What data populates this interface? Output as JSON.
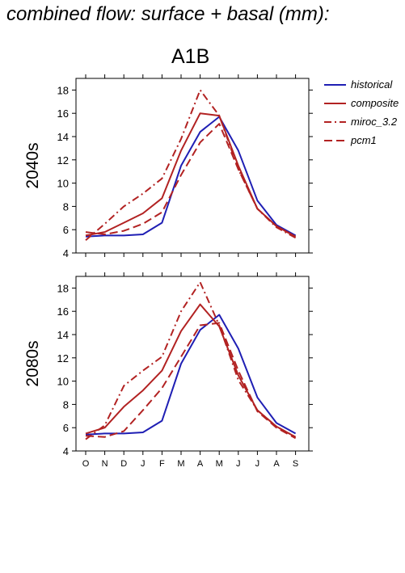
{
  "chart_data": {
    "type": "line",
    "title": "combined flow: surface + basal (mm):",
    "subtitle": "A1B",
    "categories": [
      "O",
      "N",
      "D",
      "J",
      "F",
      "M",
      "A",
      "M",
      "J",
      "J",
      "A",
      "S"
    ],
    "legend": {
      "placement": "right"
    },
    "series_styles": [
      {
        "name": "historical",
        "color": "#1f1fb4",
        "dash": ""
      },
      {
        "name": "composite",
        "color": "#b22222",
        "dash": ""
      },
      {
        "name": "miroc_3.2",
        "color": "#b22222",
        "dash": "9,4,2,4"
      },
      {
        "name": "pcm1",
        "color": "#b22222",
        "dash": "10,5"
      }
    ],
    "panels": [
      {
        "label": "2040s",
        "ylim": [
          4,
          19
        ],
        "yticks": [
          4,
          6,
          8,
          10,
          12,
          14,
          16,
          18
        ],
        "series": [
          {
            "name": "historical",
            "values": [
              5.4,
              5.5,
              5.5,
              5.6,
              6.6,
              11.5,
              14.4,
              15.7,
              12.8,
              8.5,
              6.4,
              5.5
            ]
          },
          {
            "name": "composite",
            "values": [
              5.5,
              5.8,
              6.6,
              7.4,
              8.7,
              12.8,
              16.0,
              15.8,
              11.5,
              7.8,
              6.3,
              5.4
            ]
          },
          {
            "name": "miroc_3.2",
            "values": [
              5.1,
              6.5,
              8.0,
              9.1,
              10.4,
              13.8,
              18.0,
              15.8,
              11.2,
              7.8,
              6.2,
              5.3
            ]
          },
          {
            "name": "pcm1",
            "values": [
              5.8,
              5.6,
              5.9,
              6.5,
              7.5,
              10.7,
              13.5,
              15.1,
              11.2,
              7.8,
              6.3,
              5.4
            ]
          }
        ]
      },
      {
        "label": "2080s",
        "ylim": [
          4,
          19
        ],
        "yticks": [
          4,
          6,
          8,
          10,
          12,
          14,
          16,
          18
        ],
        "series": [
          {
            "name": "historical",
            "values": [
              5.4,
              5.5,
              5.5,
              5.6,
              6.6,
              11.5,
              14.4,
              15.7,
              12.8,
              8.6,
              6.4,
              5.5
            ]
          },
          {
            "name": "composite",
            "values": [
              5.5,
              6.0,
              7.8,
              9.2,
              10.9,
              14.3,
              16.6,
              14.7,
              10.5,
              7.5,
              6.1,
              5.2
            ]
          },
          {
            "name": "miroc_3.2",
            "values": [
              5.0,
              6.2,
              9.6,
              10.9,
              12.1,
              16.0,
              18.5,
              14.8,
              10.1,
              7.5,
              6.1,
              5.2
            ]
          },
          {
            "name": "pcm1",
            "values": [
              5.3,
              5.2,
              5.7,
              7.5,
              9.4,
              12.1,
              14.8,
              15.0,
              10.9,
              7.4,
              6.0,
              5.1
            ]
          }
        ]
      }
    ]
  }
}
